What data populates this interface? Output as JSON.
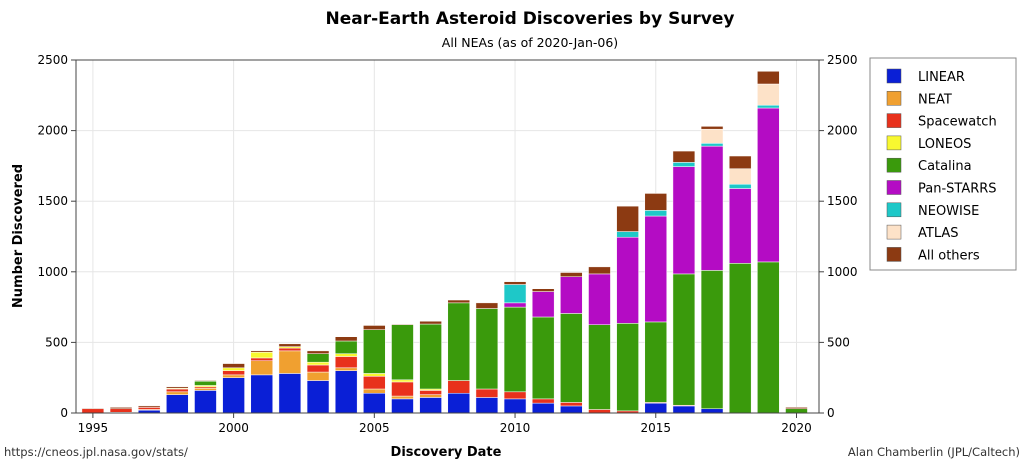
{
  "chart_data": {
    "type": "bar",
    "stacked": true,
    "title": "Near-Earth Asteroid Discoveries by Survey",
    "subtitle": "All NEAs (as of 2020-Jan-06)",
    "xlabel": "Discovery Date",
    "ylabel": "Number Discovered",
    "source_left": "https://cneos.jpl.nasa.gov/stats/",
    "credit_right": "Alan Chamberlin (JPL/Caltech)",
    "xlim": [
      1994.4,
      2020.8
    ],
    "ylim": [
      0,
      2500
    ],
    "xticks": [
      1995,
      2000,
      2005,
      2010,
      2015,
      2020
    ],
    "yticks": [
      0,
      500,
      1000,
      1500,
      2000,
      2500
    ],
    "grid": true,
    "legend_position": "right",
    "categories": [
      1995,
      1996,
      1997,
      1998,
      1999,
      2000,
      2001,
      2002,
      2003,
      2004,
      2005,
      2006,
      2007,
      2008,
      2009,
      2010,
      2011,
      2012,
      2013,
      2014,
      2015,
      2016,
      2017,
      2018,
      2019,
      2020
    ],
    "series": [
      {
        "name": "LINEAR",
        "color": "#0a1fd6",
        "values": [
          0,
          0,
          20,
          130,
          160,
          250,
          270,
          280,
          230,
          300,
          140,
          100,
          110,
          140,
          110,
          100,
          70,
          50,
          0,
          0,
          70,
          50,
          30,
          0,
          0,
          0
        ]
      },
      {
        "name": "NEAT",
        "color": "#f0a030",
        "values": [
          0,
          5,
          5,
          20,
          15,
          20,
          100,
          160,
          60,
          20,
          30,
          20,
          20,
          0,
          0,
          0,
          0,
          0,
          0,
          0,
          0,
          0,
          0,
          0,
          0,
          0
        ]
      },
      {
        "name": "Spacewatch",
        "color": "#e8311c",
        "values": [
          30,
          25,
          15,
          20,
          10,
          30,
          20,
          20,
          50,
          80,
          90,
          100,
          30,
          90,
          60,
          50,
          30,
          25,
          25,
          15,
          5,
          5,
          0,
          0,
          0,
          0
        ]
      },
      {
        "name": "LONEOS",
        "color": "#f8f830",
        "values": [
          0,
          0,
          0,
          5,
          10,
          20,
          40,
          10,
          20,
          20,
          20,
          15,
          10,
          0,
          0,
          0,
          0,
          0,
          0,
          0,
          0,
          0,
          0,
          0,
          0,
          0
        ]
      },
      {
        "name": "Catalina",
        "color": "#3a9a0c",
        "values": [
          0,
          0,
          0,
          0,
          30,
          0,
          0,
          0,
          60,
          90,
          310,
          390,
          460,
          550,
          570,
          600,
          580,
          630,
          600,
          620,
          570,
          930,
          980,
          1060,
          1070,
          30
        ]
      },
      {
        "name": "Pan-STARRS",
        "color": "#b40cc4",
        "values": [
          0,
          0,
          0,
          0,
          0,
          0,
          0,
          0,
          0,
          0,
          0,
          0,
          0,
          0,
          0,
          30,
          180,
          260,
          360,
          610,
          750,
          760,
          880,
          530,
          1090,
          0
        ]
      },
      {
        "name": "NEOWISE",
        "color": "#1ec8c8",
        "values": [
          0,
          0,
          0,
          0,
          0,
          0,
          0,
          0,
          0,
          0,
          0,
          0,
          0,
          0,
          0,
          130,
          0,
          0,
          0,
          40,
          40,
          30,
          20,
          30,
          20,
          0
        ]
      },
      {
        "name": "ATLAS",
        "color": "#fde2c8",
        "values": [
          0,
          0,
          0,
          0,
          0,
          0,
          0,
          0,
          0,
          0,
          0,
          0,
          0,
          0,
          0,
          0,
          0,
          0,
          0,
          0,
          0,
          0,
          100,
          110,
          150,
          0
        ]
      },
      {
        "name": "All others",
        "color": "#8c3a12",
        "values": [
          5,
          10,
          10,
          10,
          5,
          30,
          10,
          20,
          20,
          30,
          30,
          5,
          20,
          20,
          40,
          20,
          20,
          30,
          50,
          180,
          120,
          80,
          20,
          90,
          90,
          10
        ]
      }
    ]
  }
}
